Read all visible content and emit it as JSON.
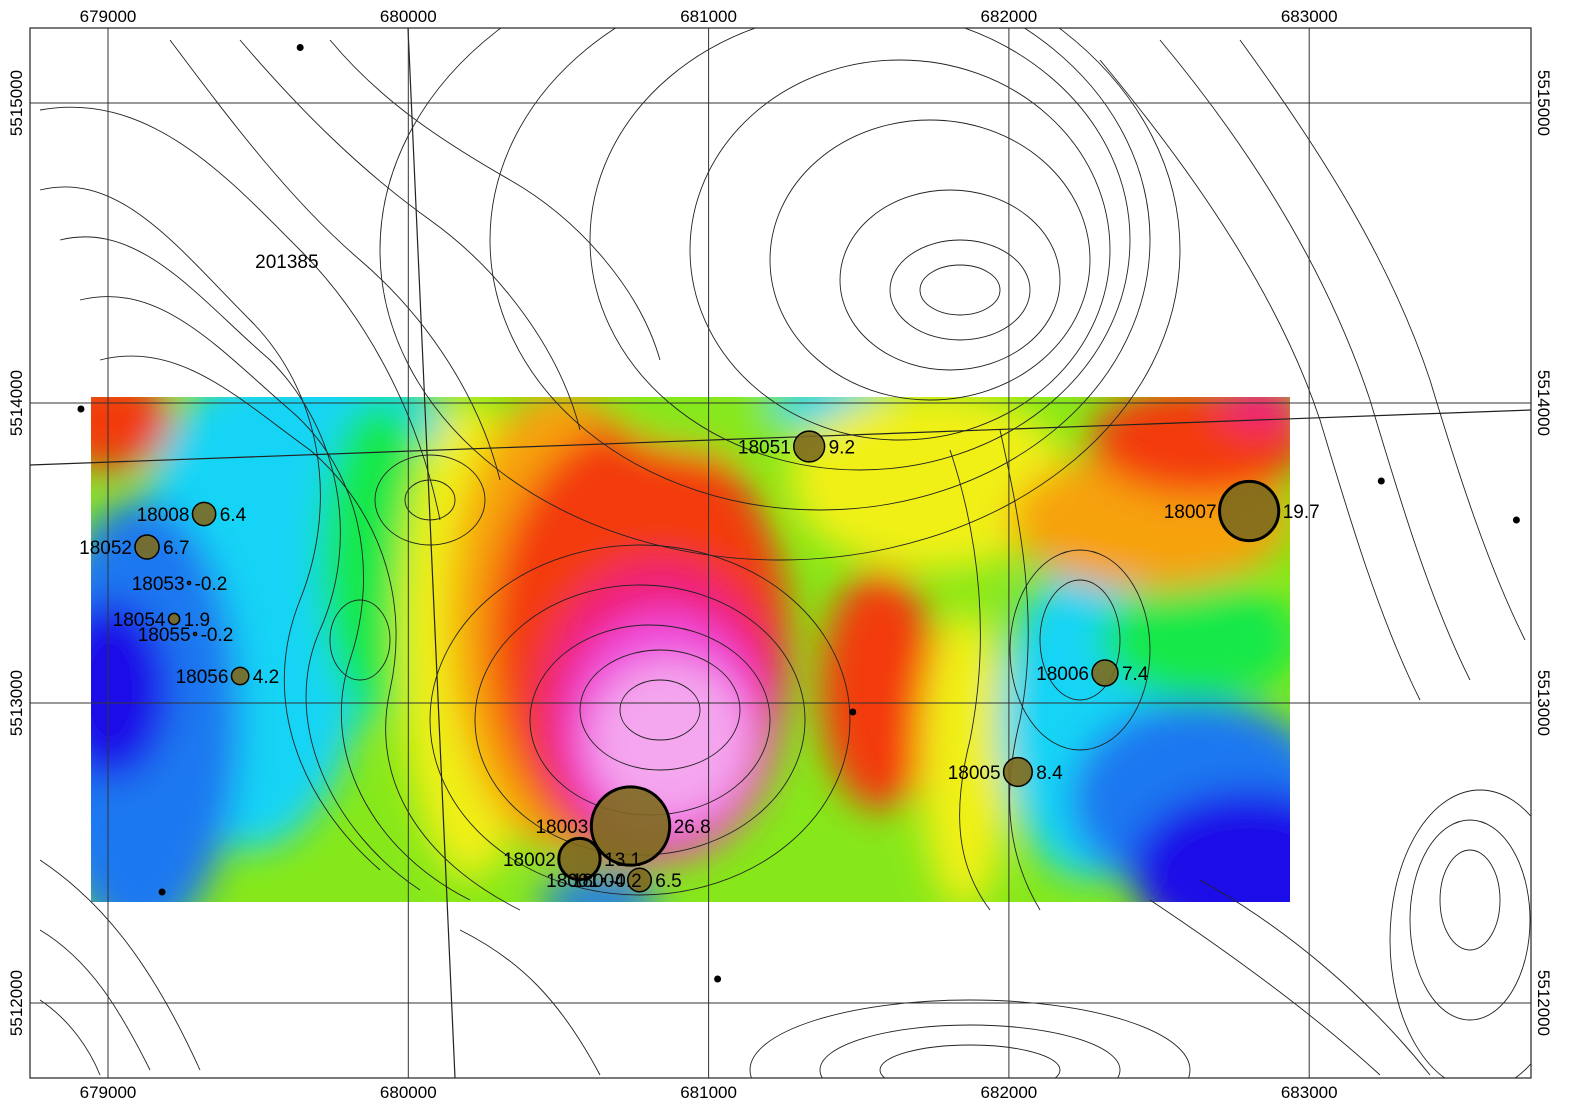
{
  "map": {
    "x_ticks": [
      "679000",
      "680000",
      "681000",
      "682000",
      "683000"
    ],
    "y_ticks_left": [
      "5515000",
      "5514000",
      "5513000",
      "5512000"
    ],
    "y_ticks_right": [
      "5515000",
      "5514000",
      "5513000",
      "5512000"
    ],
    "extent": {
      "x_min": 678900,
      "x_max": 683900,
      "y_min": 5511750,
      "y_max": 5515250
    },
    "grid": true,
    "raster_colors": [
      "#1a10e8",
      "#1a78f0",
      "#19d4f5",
      "#16e84a",
      "#86e81a",
      "#f0f013",
      "#f6a20e",
      "#f33a10",
      "#ef1b7a",
      "#ef4cdc",
      "#f4a6ee"
    ],
    "raster_extent": {
      "x_min": 679100,
      "x_max": 682950,
      "y_min": 5512330,
      "y_max": 5514020
    }
  },
  "stations": [
    {
      "id": "18051",
      "value": "9.2",
      "x": 681335,
      "y": 5513855
    },
    {
      "id": "18007",
      "value": "19.7",
      "x": 682800,
      "y": 5513640
    },
    {
      "id": "18008",
      "value": "6.4",
      "x": 679320,
      "y": 5513630
    },
    {
      "id": "18052",
      "value": "6.7",
      "x": 679130,
      "y": 5513520
    },
    {
      "id": "18053",
      "value": "-0.2",
      "x": 679270,
      "y": 5513400
    },
    {
      "id": "18054",
      "value": "1.9",
      "x": 679220,
      "y": 5513280
    },
    {
      "id": "18055",
      "value": "-0.2",
      "x": 679290,
      "y": 5513230
    },
    {
      "id": "18056",
      "value": "4.2",
      "x": 679440,
      "y": 5513090
    },
    {
      "id": "18006",
      "value": "7.4",
      "x": 682320,
      "y": 5513100
    },
    {
      "id": "18005",
      "value": "8.4",
      "x": 682030,
      "y": 5512770
    },
    {
      "id": "18003",
      "value": "26.8",
      "x": 680740,
      "y": 5512590
    },
    {
      "id": "18002",
      "value": "13.1",
      "x": 680570,
      "y": 5512480
    },
    {
      "id": "18001",
      "value": "-0.2",
      "x": 680650,
      "y": 5512410
    },
    {
      "id": "18004",
      "value": "6.5",
      "x": 680770,
      "y": 5512410
    }
  ],
  "extra_label": {
    "text": "201385",
    "x": 679490,
    "y": 5514450
  },
  "points": [
    {
      "x": 679640,
      "y": 5515185
    },
    {
      "x": 678910,
      "y": 5513980
    },
    {
      "x": 683240,
      "y": 5513740
    },
    {
      "x": 683690,
      "y": 5513610
    },
    {
      "x": 681480,
      "y": 5512970
    },
    {
      "x": 679180,
      "y": 5512370
    },
    {
      "x": 681030,
      "y": 5512080
    }
  ]
}
